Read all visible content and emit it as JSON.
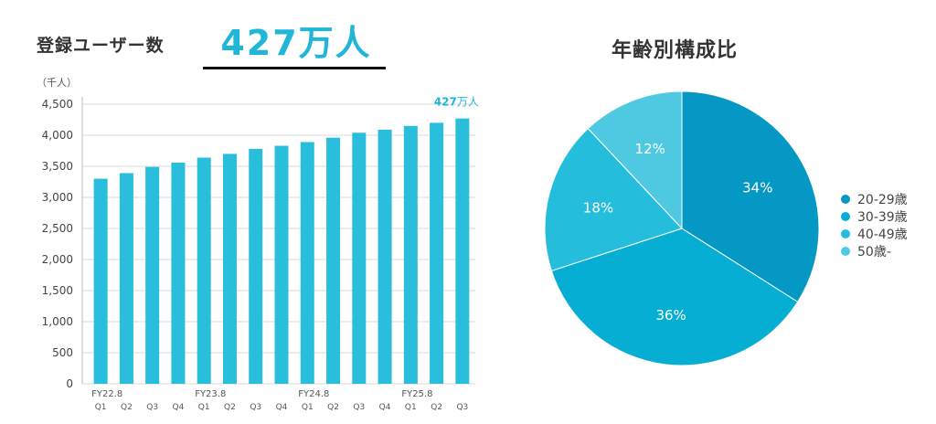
{
  "bar_section": {
    "title": "登録ユーザー数",
    "headline": "427万人",
    "unit": "（千人）",
    "callout_number": "427",
    "callout_unit": "万人"
  },
  "pie_section": {
    "title": "年齢別構成比"
  },
  "colors": {
    "bar": "#28bedc",
    "callout": "#1fb6d8",
    "pie": [
      "#0598c4",
      "#07aed4",
      "#25bddc",
      "#4ec9e1"
    ]
  },
  "chart_data": [
    {
      "type": "bar",
      "ylim": [
        0,
        4500
      ],
      "yticks": [
        "0",
        "500",
        "1,000",
        "1,500",
        "2,000",
        "2,500",
        "3,000",
        "3,500",
        "4,000",
        "4,500"
      ],
      "quarters": [
        "Q1",
        "Q2",
        "Q3",
        "Q4",
        "Q1",
        "Q2",
        "Q3",
        "Q4",
        "Q1",
        "Q2",
        "Q3",
        "Q4",
        "Q1",
        "Q2",
        "Q3"
      ],
      "fiscal_years": [
        {
          "label": "FY22.8",
          "at": 0
        },
        {
          "label": "FY23.8",
          "at": 4
        },
        {
          "label": "FY24.8",
          "at": 8
        },
        {
          "label": "FY25.8",
          "at": 12
        }
      ],
      "values": [
        3300,
        3390,
        3490,
        3560,
        3640,
        3700,
        3780,
        3830,
        3890,
        3960,
        4040,
        4090,
        4150,
        4200,
        4270
      ],
      "grid": true
    },
    {
      "type": "pie",
      "slices": [
        {
          "label": "20-29歳",
          "value": 34,
          "text": "34%"
        },
        {
          "label": "30-39歳",
          "value": 36,
          "text": "36%"
        },
        {
          "label": "40-49歳",
          "value": 18,
          "text": "18%"
        },
        {
          "label": "50歳-",
          "value": 12,
          "text": "12%"
        }
      ],
      "legend": "right"
    }
  ]
}
